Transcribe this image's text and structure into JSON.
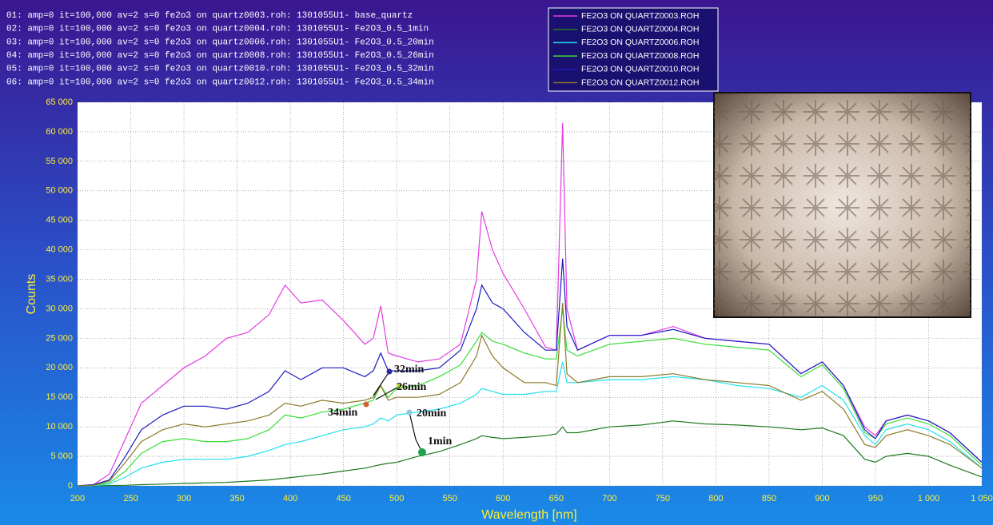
{
  "chart_data": {
    "type": "line",
    "header_lines": [
      "01: amp=0 it=100,000 av=2 s=0 fe2o3 on quartz0003.roh: 1301055U1- base_quartz",
      "02: amp=0 it=100,000 av=2 s=0 fe2o3 on quartz0004.roh: 1301055U1- Fe2O3_0.5_1min",
      "03: amp=0 it=100,000 av=2 s=0 fe2o3 on quartz0006.roh: 1301055U1- Fe2O3_0.5_20min",
      "04: amp=0 it=100,000 av=2 s=0 fe2o3 on quartz0008.roh: 1301055U1- Fe2O3_0.5_26min",
      "05: amp=0 it=100,000 av=2 s=0 fe2o3 on quartz0010.roh: 1301055U1- Fe2O3_0.5_32min",
      "06: amp=0 it=100,000 av=2 s=0 fe2o3 on quartz0012.roh: 1301055U1- Fe2O3_0.5_34min"
    ],
    "x_label": "Wavelength [nm]",
    "y_label": "Counts",
    "annotations": [
      "32min",
      "26min",
      "34min",
      "20min",
      "1min"
    ],
    "grid": true,
    "x": [
      200,
      215,
      230,
      245,
      260,
      280,
      300,
      320,
      340,
      360,
      380,
      395,
      410,
      430,
      450,
      470,
      478,
      485,
      492,
      500,
      520,
      540,
      560,
      575,
      580,
      590,
      600,
      620,
      640,
      650,
      656,
      660,
      670,
      700,
      730,
      760,
      790,
      820,
      850,
      880,
      900,
      920,
      940,
      950,
      960,
      980,
      1000,
      1020,
      1050
    ],
    "series": [
      {
        "name": "FE2O3 ON QUARTZ0003.ROH",
        "color": "#e23be2",
        "values": [
          0,
          200,
          2000,
          8000,
          14000,
          17000,
          20000,
          22000,
          25000,
          26000,
          29000,
          34000,
          31000,
          31500,
          28000,
          24000,
          25000,
          30500,
          22500,
          22000,
          21000,
          21500,
          24000,
          35000,
          46500,
          40000,
          36000,
          30000,
          23500,
          23000,
          61500,
          30000,
          23000,
          25500,
          25500,
          27000,
          25000,
          24500,
          24000,
          19000,
          21000,
          17000,
          10000,
          8500,
          11000,
          12000,
          11000,
          9000,
          4000
        ]
      },
      {
        "name": "FE2O3 ON QUARTZ0004.ROH",
        "color": "#1e7a1e",
        "values": [
          0,
          0,
          50,
          100,
          200,
          300,
          400,
          500,
          600,
          800,
          1000,
          1300,
          1600,
          2000,
          2500,
          3000,
          3300,
          3600,
          3800,
          4000,
          5000,
          5800,
          7000,
          8000,
          8500,
          8200,
          8000,
          8200,
          8500,
          8800,
          10000,
          9000,
          9000,
          10000,
          10300,
          11000,
          10500,
          10300,
          10000,
          9500,
          9800,
          8500,
          4500,
          4000,
          5000,
          5500,
          5000,
          3500,
          1500
        ]
      },
      {
        "name": "FE2O3 ON QUARTZ0006.ROH",
        "color": "#22e0ee",
        "values": [
          0,
          50,
          300,
          1500,
          3000,
          4000,
          4500,
          4500,
          4500,
          5000,
          6000,
          7000,
          7500,
          8500,
          9500,
          10000,
          10500,
          11500,
          11000,
          12000,
          12500,
          13000,
          14000,
          15500,
          16500,
          16000,
          15500,
          15500,
          16000,
          16000,
          21000,
          17500,
          17500,
          18000,
          18000,
          18500,
          18000,
          17000,
          16500,
          15000,
          17000,
          14500,
          8500,
          7000,
          9500,
          10500,
          9500,
          7500,
          3000
        ]
      },
      {
        "name": "FE2O3 ON QUARTZ0008.ROH",
        "color": "#3add3a",
        "values": [
          0,
          100,
          500,
          2500,
          5500,
          7500,
          8000,
          7500,
          7500,
          8000,
          9500,
          12000,
          11500,
          12500,
          13000,
          14000,
          14500,
          17000,
          15000,
          16500,
          17000,
          18500,
          20500,
          24500,
          26000,
          24500,
          24000,
          22500,
          21500,
          21500,
          30000,
          23000,
          22000,
          24000,
          24500,
          25000,
          24000,
          23500,
          23000,
          18500,
          20500,
          16500,
          9000,
          8000,
          10500,
          11500,
          10500,
          8500,
          3500
        ]
      },
      {
        "name": "FE2O3 ON QUARTZ0010.ROH",
        "color": "#1a1ac0",
        "values": [
          0,
          200,
          1000,
          5000,
          9500,
          12000,
          13500,
          13500,
          13000,
          14000,
          16000,
          19500,
          18000,
          20000,
          20000,
          18500,
          19500,
          22500,
          19500,
          19500,
          19500,
          20000,
          23000,
          30000,
          34000,
          31000,
          30000,
          26000,
          23000,
          23000,
          38500,
          27000,
          23000,
          25500,
          25500,
          26500,
          25000,
          24500,
          24000,
          19000,
          21000,
          17000,
          9500,
          8000,
          11000,
          12000,
          11000,
          9000,
          4000
        ]
      },
      {
        "name": "FE2O3 ON QUARTZ0012.ROH",
        "color": "#8c7a2c",
        "values": [
          0,
          100,
          800,
          4000,
          7500,
          9500,
          10500,
          10000,
          10500,
          11000,
          12000,
          14000,
          13500,
          14500,
          14000,
          14500,
          15000,
          17000,
          14500,
          15000,
          15000,
          15500,
          17500,
          22000,
          25500,
          22000,
          20000,
          17500,
          17500,
          17000,
          31000,
          19000,
          17500,
          18500,
          18500,
          19000,
          18000,
          17500,
          17000,
          14500,
          16000,
          13000,
          7000,
          6500,
          8500,
          9500,
          8500,
          7000,
          3000
        ]
      }
    ],
    "xlim": [
      200,
      1050
    ],
    "xticks": [
      200,
      250,
      300,
      350,
      400,
      450,
      500,
      550,
      600,
      650,
      700,
      750,
      800,
      850,
      900,
      950,
      {
        "value": 1000,
        "label": "1 000"
      },
      {
        "value": 1050,
        "label": "1 050"
      }
    ],
    "ylim": [
      0,
      65000
    ],
    "yticks": [
      0,
      {
        "value": 5000,
        "label": "5 000"
      },
      {
        "value": 10000,
        "label": "10 000"
      },
      {
        "value": 15000,
        "label": "15 000"
      },
      {
        "value": 20000,
        "label": "20 000"
      },
      {
        "value": 25000,
        "label": "25 000"
      },
      {
        "value": 30000,
        "label": "30 000"
      },
      {
        "value": 35000,
        "label": "35 000"
      },
      {
        "value": 40000,
        "label": "40 000"
      },
      {
        "value": 45000,
        "label": "45 000"
      },
      {
        "value": 50000,
        "label": "50 000"
      },
      {
        "value": 55000,
        "label": "55 000"
      },
      {
        "value": 60000,
        "label": "60 000"
      },
      {
        "value": 65000,
        "label": "65 000"
      }
    ]
  }
}
